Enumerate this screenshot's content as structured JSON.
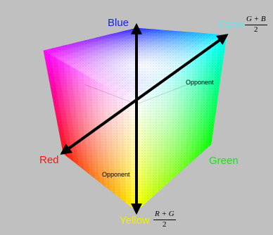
{
  "labels": {
    "blue": "Blue",
    "cyan": "Cyan",
    "red": "Red",
    "green": "Green",
    "yellow": "Yellow",
    "opponent_upper": "Opponent",
    "opponent_lower": "Opponent"
  },
  "formulas": {
    "cyan": {
      "numerator": "G + B",
      "denominator": "2"
    },
    "yellow": {
      "numerator": "R + G",
      "denominator": "2"
    }
  },
  "colors": {
    "background": "#c0c0c0",
    "blue_label": "#1a22d8",
    "cyan_label": "#5ae8f0",
    "red_label": "#f01818",
    "green_label": "#28d828",
    "yellow_label": "#f0f000",
    "axis": "#000000"
  }
}
